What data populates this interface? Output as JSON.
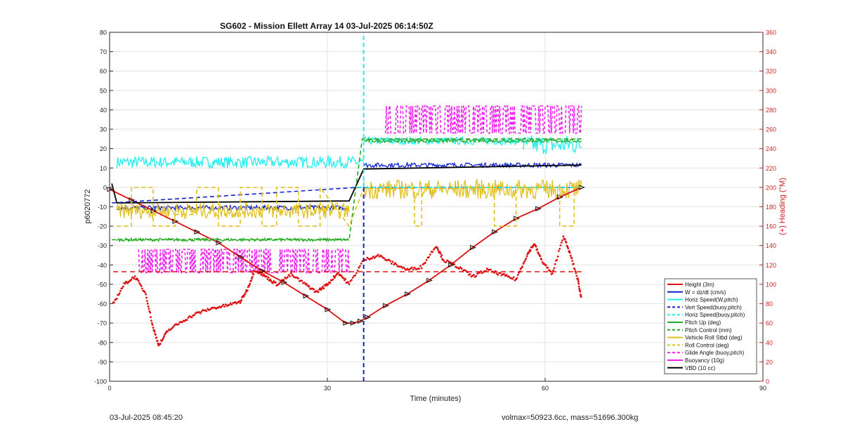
{
  "title": "SG602 - Mission Ellett Array 14 03-Jul-2025 06:14:50Z",
  "footer": {
    "left": "03-Jul-2025 08:45:20",
    "right": "volmax=50923.6cc, mass=51696.300kg"
  },
  "chart_data": {
    "type": "line",
    "xlabel": "Time (minutes)",
    "ylabel": "p6020772",
    "y2label": "(+) Heading (°M)",
    "xlim": [
      0,
      90
    ],
    "ylim": [
      -100,
      80
    ],
    "y2lim": [
      0,
      360
    ],
    "xticks": [
      0,
      30,
      60,
      90
    ],
    "yticks": [
      -100,
      -90,
      -80,
      -70,
      -60,
      -50,
      -40,
      -30,
      -20,
      -10,
      0,
      10,
      20,
      30,
      40,
      50,
      60,
      70,
      80
    ],
    "y2ticks": [
      0,
      20,
      40,
      60,
      80,
      100,
      120,
      140,
      160,
      180,
      200,
      220,
      240,
      260,
      280,
      300,
      320,
      340,
      360
    ],
    "grid": true,
    "legend_position": "bottom-right",
    "colors": {
      "red": "#dd1111",
      "blue": "#1122cc",
      "cyan": "#22eeee",
      "green": "#22aa22",
      "yellow": "#e0c020",
      "magenta": "#ee22ee",
      "black": "#000000",
      "heading_axis": "#cc2222"
    },
    "legend": [
      {
        "name": "Height (3m)",
        "color": "#dd1111",
        "dash": false
      },
      {
        "name": "W = dz/dt (cm/s)",
        "color": "#1122cc",
        "dash": false
      },
      {
        "name": "Horiz Speed(W,pitch)",
        "color": "#22eeee",
        "dash": false
      },
      {
        "name": "Vert Speed(buoy,pitch)",
        "color": "#1122cc",
        "dash": true
      },
      {
        "name": "Horiz Speed(buoy,pitch)",
        "color": "#22eeee",
        "dash": true
      },
      {
        "name": "Pitch Up (deg)",
        "color": "#22aa22",
        "dash": false
      },
      {
        "name": "Pitch Control (mm)",
        "color": "#22aa22",
        "dash": true
      },
      {
        "name": "Vehicle Roll Stbd (deg)",
        "color": "#e0c020",
        "dash": false
      },
      {
        "name": "Roll Control (deg)",
        "color": "#e0c020",
        "dash": true
      },
      {
        "name": "Glide Angle (buoy,pitch)",
        "color": "#ee22ee",
        "dash": true
      },
      {
        "name": "Buoyancy (10g)",
        "color": "#ee22ee",
        "dash": false
      },
      {
        "name": "VBD (10 cc)",
        "color": "#000000",
        "dash": false
      }
    ],
    "series": [
      {
        "key": "height",
        "color": "#dd1111",
        "dash": false,
        "markers": true,
        "x": [
          0,
          3,
          6,
          9,
          12,
          15,
          18,
          21,
          24,
          27,
          30,
          32.5,
          33.5,
          34.5,
          35.5,
          38,
          41,
          44,
          47,
          50,
          53,
          56,
          59,
          62,
          65
        ],
        "y": [
          -1,
          -6.5,
          -12,
          -17.5,
          -23,
          -28.5,
          -36,
          -43,
          -49,
          -56,
          -63,
          -70,
          -70,
          -69,
          -67,
          -61,
          -55,
          -48,
          -40,
          -31,
          -23,
          -16,
          -11,
          -5,
          0
        ]
      },
      {
        "key": "vbd",
        "color": "#000000",
        "dash": false,
        "x": [
          0.3,
          1,
          33,
          35,
          65
        ],
        "y": [
          2,
          -8,
          -7,
          9.5,
          11.5
        ]
      },
      {
        "key": "vert_speed_buoy",
        "color": "#1122cc",
        "dash": true,
        "x": [
          0.3,
          34.2,
          65
        ],
        "y": [
          -8,
          0,
          0
        ]
      },
      {
        "key": "horiz_speed_buoy",
        "color": "#22eeee",
        "dash": true,
        "x": [
          34.2,
          34.8,
          65
        ],
        "y": [
          0,
          0,
          0
        ]
      },
      {
        "key": "pitch_control",
        "color": "#22aa22",
        "dash": true,
        "x": [
          0.3,
          33,
          34.8,
          65
        ],
        "y": [
          -27,
          -27,
          25,
          25
        ]
      },
      {
        "key": "roll_control",
        "color": "#e0c020",
        "dash": true,
        "x": [
          1,
          3,
          3,
          6,
          6,
          9,
          9,
          12,
          12,
          15,
          15,
          18,
          18,
          21,
          21,
          23,
          23,
          26,
          26,
          29,
          29,
          33,
          35,
          42,
          42,
          43,
          43,
          49,
          49,
          53,
          53,
          56,
          56,
          62,
          62,
          64,
          64,
          65
        ],
        "y": [
          -20,
          -20,
          0,
          0,
          -20,
          -20,
          -14,
          -14,
          0,
          0,
          -20,
          -20,
          0,
          0,
          -20,
          -20,
          0,
          0,
          -20,
          -20,
          0,
          -20,
          -0.5,
          -0.5,
          -20,
          -20,
          -0.5,
          -0.5,
          0,
          0,
          -20,
          -20,
          0,
          0,
          -20,
          -20,
          0,
          0
        ]
      }
    ],
    "vertical_lines": [
      {
        "x": 35,
        "color": "#1122cc",
        "y_from": -100,
        "y_to": 0
      },
      {
        "x": 35,
        "color": "#22eeee",
        "y_from": 0,
        "y_to": 80
      }
    ],
    "horizontal_lines": [
      {
        "y": -43.5,
        "color": "#dd1111",
        "dash": true,
        "x_from": 0.5,
        "x_to": 65
      }
    ],
    "noisy_segments": [
      {
        "key": "horiz_speed_w",
        "color": "#22eeee",
        "segments": [
          [
            1,
            35,
            13,
            3
          ],
          [
            35,
            57,
            24,
            2
          ],
          [
            57,
            65,
            22,
            5
          ]
        ]
      },
      {
        "key": "w_dzdt",
        "color": "#1122cc",
        "segments": [
          [
            1,
            33,
            -10.5,
            1.2
          ],
          [
            35,
            65,
            11.5,
            1.2
          ]
        ]
      },
      {
        "key": "pitch_up",
        "color": "#22aa22",
        "segments": [
          [
            1,
            33,
            -27,
            0.8
          ],
          [
            35,
            65,
            24,
            0.8
          ]
        ]
      },
      {
        "key": "glide_angle",
        "color": "#ee22ee",
        "segments": [
          [
            4,
            33,
            -38,
            6
          ],
          [
            38,
            65,
            35,
            7
          ]
        ]
      },
      {
        "key": "vehicle_roll",
        "color": "#e0c020",
        "segments": [
          [
            1,
            33,
            -12,
            4
          ],
          [
            35,
            65,
            -1,
            5
          ]
        ]
      }
    ],
    "heading_trace": {
      "key": "heading",
      "color": "#dd1111",
      "axis": "right",
      "x": [
        0.5,
        2,
        3.5,
        5,
        6,
        6.8,
        8,
        10,
        12,
        14,
        16,
        18,
        19,
        20,
        21.5,
        23,
        25,
        27,
        28.5,
        30,
        31.5,
        33,
        35,
        37,
        39,
        41,
        43,
        45,
        46,
        48,
        50,
        52,
        54,
        56,
        57.5,
        58.5,
        59.5,
        61,
        62.5,
        63.5,
        64.5,
        65
      ],
      "y": [
        80,
        100,
        108,
        90,
        55,
        37,
        52,
        62,
        70,
        75,
        78,
        82,
        95,
        115,
        108,
        100,
        110,
        100,
        92,
        100,
        112,
        100,
        125,
        130,
        122,
        115,
        118,
        140,
        125,
        118,
        108,
        115,
        110,
        105,
        130,
        142,
        125,
        110,
        150,
        130,
        105,
        85
      ]
    }
  }
}
